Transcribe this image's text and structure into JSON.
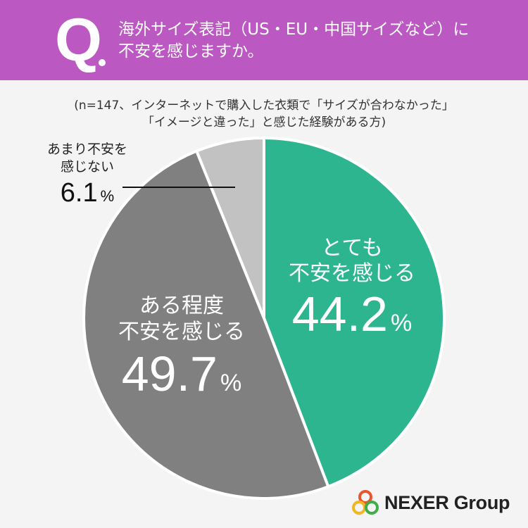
{
  "header": {
    "q_mark": "Q",
    "question_lines": [
      "海外サイズ表記（US・EU・中国サイズなど）に",
      "不安を感じますか。"
    ]
  },
  "note_lines": [
    "(n=147、インターネットで購入した衣類で「サイズが合わなかった」",
    "「イメージと違った」と感じた経験がある方)"
  ],
  "chart_data": {
    "type": "pie",
    "title": "",
    "slices": [
      {
        "label_lines": [
          "とても",
          "不安を感じる"
        ],
        "value": 44.2,
        "value_text": "44.2",
        "unit": "%",
        "color": "#2db590"
      },
      {
        "label_lines": [
          "ある程度",
          "不安を感じる"
        ],
        "value": 49.7,
        "value_text": "49.7",
        "unit": "%",
        "color": "#808080"
      },
      {
        "label_lines": [
          "あまり不安を",
          "感じない"
        ],
        "value": 6.1,
        "value_text": "6.1",
        "unit": "%",
        "color": "#c2c2c2"
      }
    ],
    "start_angle": "12 o'clock",
    "direction": "clockwise"
  },
  "logo": {
    "text": "NEXER Group",
    "colors": [
      "#e8542c",
      "#f2b623",
      "#3fae49"
    ]
  }
}
